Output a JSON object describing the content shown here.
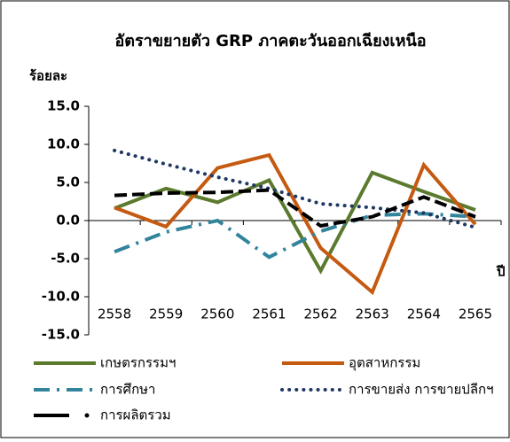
{
  "chart_data": {
    "type": "line",
    "title": "อัตราขยายตัว GRP ภาคตะวันออกเฉียงเหนือ",
    "ylabel": "ร้อยละ",
    "xlabel": "ปี",
    "categories": [
      "2558",
      "2559",
      "2560",
      "2561",
      "2562",
      "2563",
      "2564",
      "2565"
    ],
    "ylim": [
      -15,
      15
    ],
    "yticks": [
      {
        "value": 15,
        "label": "15.0"
      },
      {
        "value": 10,
        "label": "10.0"
      },
      {
        "value": 5,
        "label": "5.0"
      },
      {
        "value": 0,
        "label": "0.0"
      },
      {
        "value": -5,
        "label": "-5.0"
      },
      {
        "value": -10,
        "label": "-10.0"
      },
      {
        "value": -15,
        "label": "-15.0"
      }
    ],
    "grid": false,
    "legend": "bottom",
    "series": [
      {
        "name": "เกษตรกรรมฯ",
        "color": "#5b7a2e",
        "dash": "solid",
        "values": [
          1.6,
          4.2,
          2.4,
          5.3,
          -6.6,
          6.3,
          3.8,
          1.4
        ]
      },
      {
        "name": "อุตสาหกรรม",
        "color": "#c55a11",
        "dash": "solid",
        "values": [
          1.7,
          -0.8,
          6.9,
          8.6,
          -3.6,
          -9.4,
          7.3,
          -0.5
        ]
      },
      {
        "name": "การศึกษา",
        "color": "#31849b",
        "dash": "dashdot",
        "values": [
          -4.1,
          -1.5,
          0,
          -4.8,
          -1.4,
          0.7,
          0.9,
          0.5
        ]
      },
      {
        "name": "การขายส่ง การขายปลีกฯ",
        "color": "#1f3864",
        "dash": "dotted",
        "values": [
          9.2,
          7.4,
          5.7,
          4.2,
          2.2,
          1.7,
          1.0,
          -0.9
        ]
      },
      {
        "name": "การผลิตรวม",
        "color": "#000000",
        "dash": "dashed",
        "values": [
          3.3,
          3.6,
          3.7,
          4.0,
          -0.7,
          0.5,
          3.1,
          0.5
        ]
      }
    ]
  }
}
